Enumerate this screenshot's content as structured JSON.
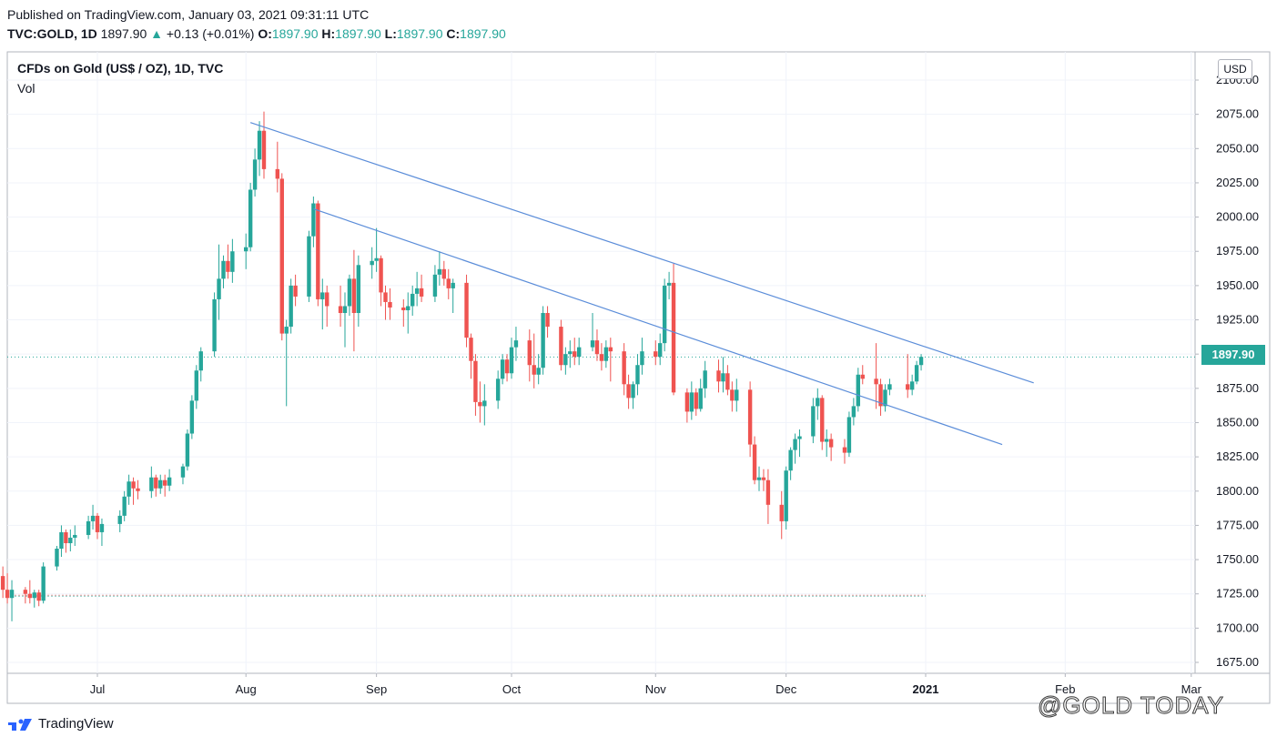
{
  "header": {
    "published": "Published on TradingView.com, January 03, 2021 09:31:11 UTC",
    "symbol": "TVC:GOLD, 1D",
    "last": "1897.90",
    "change_arrow": "▲",
    "change": "+0.13 (+0.01%)",
    "o_label": "O:",
    "o": "1897.90",
    "h_label": "H:",
    "h": "1897.90",
    "l_label": "L:",
    "l": "1897.90",
    "c_label": "C:",
    "c": "1897.90"
  },
  "legend": {
    "title": "CFDs on Gold (US$ / OZ), 1D, TVC",
    "vol": "Vol"
  },
  "currency_button": "USD",
  "price_badge": "1897.90",
  "footer": {
    "brand": "TradingView",
    "watermark": "@GOLD TODAY"
  },
  "colors": {
    "up": "#26a69a",
    "down": "#ef5350",
    "trendline": "#5b8dd9",
    "grid": "#f0f3fa",
    "badge": "#26a69a"
  },
  "chart_data": {
    "type": "candlestick",
    "title": "CFDs on Gold (US$ / OZ), 1D, TVC",
    "ylim": [
      1660,
      2108
    ],
    "y_ticks": [
      "2100.00",
      "2075.00",
      "2050.00",
      "2025.00",
      "2000.00",
      "1975.00",
      "1950.00",
      "1925.00",
      "1900.00",
      "1875.00",
      "1850.00",
      "1825.00",
      "1800.00",
      "1775.00",
      "1750.00",
      "1725.00",
      "1700.00",
      "1675.00"
    ],
    "x_ticks": [
      {
        "label": "Jul",
        "date": "2020-07-01"
      },
      {
        "label": "Aug",
        "date": "2020-08-03"
      },
      {
        "label": "Sep",
        "date": "2020-09-01"
      },
      {
        "label": "Oct",
        "date": "2020-10-01"
      },
      {
        "label": "Nov",
        "date": "2020-11-02"
      },
      {
        "label": "Dec",
        "date": "2020-12-01"
      },
      {
        "label": "2021",
        "date": "2021-01-01"
      },
      {
        "label": "Feb",
        "date": "2021-02-01"
      },
      {
        "label": "Mar",
        "date": "2021-03-01"
      }
    ],
    "last_price": 1897.9,
    "reference_level": 1724,
    "candles": [
      [
        "2020-06-10",
        1738,
        1745,
        1722,
        1728
      ],
      [
        "2020-06-11",
        1728,
        1740,
        1718,
        1722
      ],
      [
        "2020-06-12",
        1722,
        1735,
        1705,
        1728
      ],
      [
        "2020-06-15",
        1728,
        1730,
        1718,
        1725
      ],
      [
        "2020-06-16",
        1725,
        1735,
        1718,
        1722
      ],
      [
        "2020-06-17",
        1722,
        1728,
        1715,
        1726
      ],
      [
        "2020-06-18",
        1726,
        1728,
        1716,
        1720
      ],
      [
        "2020-06-19",
        1720,
        1748,
        1718,
        1745
      ],
      [
        "2020-06-22",
        1745,
        1760,
        1742,
        1758
      ],
      [
        "2020-06-23",
        1758,
        1775,
        1752,
        1770
      ],
      [
        "2020-06-24",
        1770,
        1772,
        1755,
        1762
      ],
      [
        "2020-06-25",
        1762,
        1772,
        1756,
        1766
      ],
      [
        "2020-06-26",
        1766,
        1775,
        1760,
        1768
      ],
      [
        "2020-06-29",
        1768,
        1782,
        1765,
        1778
      ],
      [
        "2020-06-30",
        1778,
        1790,
        1772,
        1782
      ],
      [
        "2020-07-01",
        1782,
        1784,
        1765,
        1770
      ],
      [
        "2020-07-02",
        1770,
        1780,
        1760,
        1776
      ],
      [
        "2020-07-06",
        1776,
        1786,
        1770,
        1782
      ],
      [
        "2020-07-07",
        1782,
        1800,
        1778,
        1796
      ],
      [
        "2020-07-08",
        1796,
        1812,
        1790,
        1807
      ],
      [
        "2020-07-09",
        1807,
        1810,
        1790,
        1802
      ],
      [
        "2020-07-10",
        1802,
        1808,
        1794,
        1800
      ],
      [
        "2020-07-13",
        1800,
        1818,
        1795,
        1810
      ],
      [
        "2020-07-14",
        1810,
        1812,
        1796,
        1802
      ],
      [
        "2020-07-15",
        1802,
        1812,
        1798,
        1808
      ],
      [
        "2020-07-16",
        1808,
        1812,
        1796,
        1804
      ],
      [
        "2020-07-17",
        1804,
        1816,
        1800,
        1810
      ],
      [
        "2020-07-20",
        1810,
        1820,
        1805,
        1818
      ],
      [
        "2020-07-21",
        1818,
        1845,
        1815,
        1842
      ],
      [
        "2020-07-22",
        1842,
        1870,
        1838,
        1866
      ],
      [
        "2020-07-23",
        1866,
        1892,
        1860,
        1888
      ],
      [
        "2020-07-24",
        1888,
        1905,
        1880,
        1902
      ],
      [
        "2020-07-27",
        1902,
        1945,
        1898,
        1940
      ],
      [
        "2020-07-28",
        1940,
        1980,
        1925,
        1955
      ],
      [
        "2020-07-29",
        1955,
        1972,
        1948,
        1968
      ],
      [
        "2020-07-30",
        1968,
        1980,
        1955,
        1960
      ],
      [
        "2020-07-31",
        1960,
        1984,
        1952,
        1975
      ],
      [
        "2020-08-03",
        1975,
        1988,
        1962,
        1978
      ],
      [
        "2020-08-04",
        1978,
        2025,
        1975,
        2020
      ],
      [
        "2020-08-05",
        2020,
        2050,
        2015,
        2042
      ],
      [
        "2020-08-06",
        2042,
        2070,
        2030,
        2063
      ],
      [
        "2020-08-07",
        2063,
        2077,
        2028,
        2035
      ],
      [
        "2020-08-10",
        2035,
        2055,
        2018,
        2028
      ],
      [
        "2020-08-11",
        2028,
        2032,
        1910,
        1915
      ],
      [
        "2020-08-12",
        1915,
        1925,
        1862,
        1920
      ],
      [
        "2020-08-13",
        1920,
        1955,
        1915,
        1950
      ],
      [
        "2020-08-14",
        1950,
        1958,
        1935,
        1942
      ],
      [
        "2020-08-17",
        1942,
        1990,
        1938,
        1986
      ],
      [
        "2020-08-18",
        1986,
        2015,
        1978,
        2010
      ],
      [
        "2020-08-19",
        2010,
        2012,
        1935,
        1940
      ],
      [
        "2020-08-20",
        1940,
        1955,
        1918,
        1945
      ],
      [
        "2020-08-21",
        1945,
        1950,
        1920,
        1935
      ],
      [
        "2020-08-24",
        1935,
        1950,
        1920,
        1930
      ],
      [
        "2020-08-25",
        1930,
        1945,
        1905,
        1935
      ],
      [
        "2020-08-26",
        1935,
        1958,
        1928,
        1955
      ],
      [
        "2020-08-27",
        1955,
        1976,
        1902,
        1930
      ],
      [
        "2020-08-28",
        1930,
        1972,
        1920,
        1965
      ],
      [
        "2020-08-31",
        1965,
        1978,
        1955,
        1968
      ],
      [
        "2020-09-01",
        1968,
        1992,
        1960,
        1970
      ],
      [
        "2020-09-02",
        1970,
        1972,
        1935,
        1945
      ],
      [
        "2020-09-03",
        1945,
        1950,
        1925,
        1938
      ],
      [
        "2020-09-04",
        1938,
        1948,
        1925,
        1934
      ],
      [
        "2020-09-07",
        1934,
        1940,
        1920,
        1932
      ],
      [
        "2020-09-08",
        1932,
        1945,
        1915,
        1935
      ],
      [
        "2020-09-09",
        1935,
        1950,
        1928,
        1944
      ],
      [
        "2020-09-10",
        1944,
        1960,
        1935,
        1948
      ],
      [
        "2020-09-11",
        1948,
        1958,
        1938,
        1942
      ],
      [
        "2020-09-14",
        1942,
        1965,
        1938,
        1958
      ],
      [
        "2020-09-15",
        1958,
        1975,
        1950,
        1962
      ],
      [
        "2020-09-16",
        1962,
        1968,
        1950,
        1955
      ],
      [
        "2020-09-17",
        1955,
        1962,
        1940,
        1948
      ],
      [
        "2020-09-18",
        1948,
        1955,
        1930,
        1952
      ],
      [
        "2020-09-21",
        1952,
        1958,
        1905,
        1912
      ],
      [
        "2020-09-22",
        1912,
        1915,
        1882,
        1895
      ],
      [
        "2020-09-23",
        1895,
        1900,
        1855,
        1865
      ],
      [
        "2020-09-24",
        1865,
        1880,
        1850,
        1862
      ],
      [
        "2020-09-25",
        1862,
        1878,
        1848,
        1866
      ],
      [
        "2020-09-28",
        1866,
        1888,
        1860,
        1882
      ],
      [
        "2020-09-29",
        1882,
        1900,
        1878,
        1896
      ],
      [
        "2020-09-30",
        1896,
        1900,
        1880,
        1886
      ],
      [
        "2020-10-01",
        1886,
        1912,
        1882,
        1905
      ],
      [
        "2020-10-02",
        1905,
        1920,
        1895,
        1910
      ],
      [
        "2020-10-05",
        1910,
        1918,
        1880,
        1892
      ],
      [
        "2020-10-06",
        1892,
        1915,
        1875,
        1885
      ],
      [
        "2020-10-07",
        1885,
        1900,
        1878,
        1890
      ],
      [
        "2020-10-08",
        1890,
        1935,
        1885,
        1930
      ],
      [
        "2020-10-09",
        1930,
        1935,
        1912,
        1920
      ],
      [
        "2020-10-12",
        1920,
        1925,
        1888,
        1892
      ],
      [
        "2020-10-13",
        1892,
        1905,
        1885,
        1900
      ],
      [
        "2020-10-14",
        1900,
        1910,
        1890,
        1902
      ],
      [
        "2020-10-15",
        1902,
        1912,
        1892,
        1898
      ],
      [
        "2020-10-16",
        1898,
        1912,
        1892,
        1905
      ],
      [
        "2020-10-19",
        1905,
        1930,
        1902,
        1910
      ],
      [
        "2020-10-20",
        1910,
        1918,
        1895,
        1900
      ],
      [
        "2020-10-21",
        1900,
        1908,
        1888,
        1895
      ],
      [
        "2020-10-22",
        1895,
        1910,
        1890,
        1905
      ],
      [
        "2020-10-23",
        1905,
        1912,
        1880,
        1902
      ],
      [
        "2020-10-26",
        1902,
        1908,
        1870,
        1878
      ],
      [
        "2020-10-27",
        1878,
        1885,
        1860,
        1868
      ],
      [
        "2020-10-28",
        1868,
        1880,
        1860,
        1878
      ],
      [
        "2020-10-29",
        1878,
        1900,
        1870,
        1892
      ],
      [
        "2020-10-30",
        1892,
        1912,
        1885,
        1902
      ],
      [
        "2020-11-02",
        1902,
        1910,
        1892,
        1898
      ],
      [
        "2020-11-03",
        1898,
        1915,
        1892,
        1908
      ],
      [
        "2020-11-04",
        1908,
        1955,
        1902,
        1950
      ],
      [
        "2020-11-05",
        1950,
        1960,
        1940,
        1952
      ],
      [
        "2020-11-06",
        1952,
        1966,
        1870,
        1872
      ],
      [
        "2020-11-09",
        1872,
        1875,
        1850,
        1858
      ],
      [
        "2020-11-10",
        1858,
        1880,
        1852,
        1872
      ],
      [
        "2020-11-11",
        1872,
        1875,
        1855,
        1860
      ],
      [
        "2020-11-12",
        1860,
        1882,
        1858,
        1875
      ],
      [
        "2020-11-13",
        1875,
        1895,
        1868,
        1888
      ],
      [
        "2020-11-16",
        1888,
        1896,
        1872,
        1880
      ],
      [
        "2020-11-17",
        1880,
        1898,
        1872,
        1886
      ],
      [
        "2020-11-18",
        1886,
        1892,
        1870,
        1874
      ],
      [
        "2020-11-19",
        1874,
        1880,
        1858,
        1866
      ],
      [
        "2020-11-20",
        1866,
        1882,
        1858,
        1874
      ],
      [
        "2020-11-23",
        1874,
        1880,
        1825,
        1834
      ],
      [
        "2020-11-24",
        1834,
        1840,
        1805,
        1808
      ],
      [
        "2020-11-25",
        1808,
        1818,
        1800,
        1810
      ],
      [
        "2020-11-26",
        1810,
        1816,
        1800,
        1808
      ],
      [
        "2020-11-27",
        1808,
        1816,
        1776,
        1790
      ],
      [
        "2020-11-30",
        1790,
        1800,
        1765,
        1778
      ],
      [
        "2020-12-01",
        1778,
        1818,
        1772,
        1815
      ],
      [
        "2020-12-02",
        1815,
        1832,
        1808,
        1830
      ],
      [
        "2020-12-03",
        1830,
        1842,
        1820,
        1838
      ],
      [
        "2020-12-04",
        1838,
        1845,
        1825,
        1840
      ],
      [
        "2020-12-07",
        1840,
        1868,
        1835,
        1862
      ],
      [
        "2020-12-08",
        1862,
        1875,
        1852,
        1868
      ],
      [
        "2020-12-09",
        1868,
        1870,
        1830,
        1836
      ],
      [
        "2020-12-10",
        1836,
        1845,
        1825,
        1838
      ],
      [
        "2020-12-11",
        1838,
        1842,
        1822,
        1832
      ],
      [
        "2020-12-14",
        1832,
        1838,
        1820,
        1828
      ],
      [
        "2020-12-15",
        1828,
        1858,
        1825,
        1854
      ],
      [
        "2020-12-16",
        1854,
        1868,
        1848,
        1862
      ],
      [
        "2020-12-17",
        1862,
        1890,
        1858,
        1885
      ],
      [
        "2020-12-18",
        1885,
        1892,
        1878,
        1882
      ],
      [
        "2020-12-21",
        1882,
        1908,
        1860,
        1878
      ],
      [
        "2020-12-22",
        1878,
        1882,
        1855,
        1862
      ],
      [
        "2020-12-23",
        1862,
        1878,
        1858,
        1874
      ],
      [
        "2020-12-24",
        1874,
        1882,
        1870,
        1878
      ],
      [
        "2020-12-28",
        1878,
        1900,
        1868,
        1874
      ],
      [
        "2020-12-29",
        1874,
        1885,
        1870,
        1880
      ],
      [
        "2020-12-30",
        1880,
        1895,
        1878,
        1892
      ],
      [
        "2020-12-31",
        1892,
        1900,
        1888,
        1898
      ]
    ],
    "trendlines": [
      {
        "from": [
          "2020-08-04",
          2069
        ],
        "to": [
          "2021-01-25",
          1879
        ]
      },
      {
        "from": [
          "2020-08-18",
          2006
        ],
        "to": [
          "2021-01-18",
          1834
        ]
      }
    ]
  }
}
